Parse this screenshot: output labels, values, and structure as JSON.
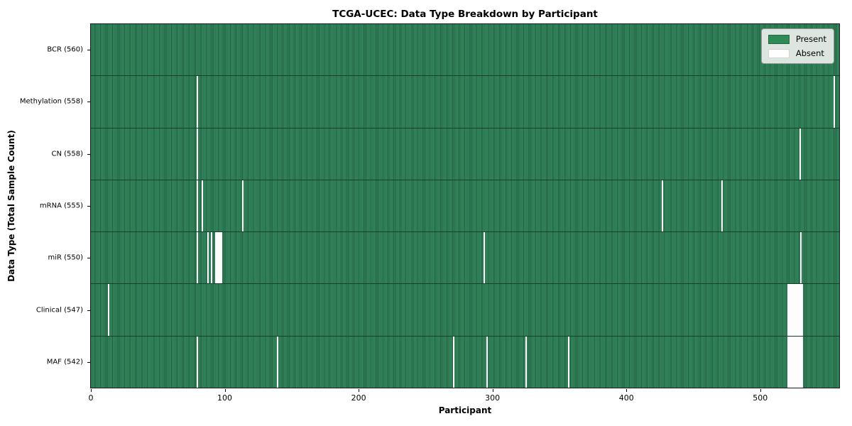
{
  "title": "TCGA-UCEC: Data Type Breakdown by Participant",
  "xlabel": "Participant",
  "ylabel": "Data Type (Total Sample Count)",
  "legend": {
    "present_label": "Present",
    "absent_label": "Absent"
  },
  "colors": {
    "present": "#2e8b57",
    "present_edge": "#215c3e",
    "absent": "#ffffff"
  },
  "x_ticks": [
    0,
    100,
    200,
    300,
    400,
    500
  ],
  "chart_data": {
    "type": "heatmap",
    "title": "TCGA-UCEC: Data Type Breakdown by Participant",
    "xlabel": "Participant",
    "ylabel": "Data Type (Total Sample Count)",
    "n_participants": 560,
    "xlim": [
      0,
      560
    ],
    "x_ticks": [
      0,
      100,
      200,
      300,
      400,
      500
    ],
    "legend": [
      "Present",
      "Absent"
    ],
    "legend_position": "upper right",
    "grid": false,
    "rows": [
      {
        "label": "BCR (560)",
        "present_count": 560,
        "absent_participants": []
      },
      {
        "label": "Methylation (558)",
        "present_count": 558,
        "absent_participants": [
          79,
          556
        ]
      },
      {
        "label": "CN (558)",
        "present_count": 558,
        "absent_participants": [
          79,
          530
        ]
      },
      {
        "label": "mRNA (555)",
        "present_count": 555,
        "absent_participants": [
          79,
          83,
          113,
          427,
          472
        ]
      },
      {
        "label": "miR (550)",
        "present_count": 550,
        "absent_participants": [
          79,
          87,
          90,
          93,
          94,
          95,
          96,
          97,
          294,
          531
        ]
      },
      {
        "label": "Clinical (547)",
        "present_count": 547,
        "absent_participants": [
          13,
          521,
          522,
          523,
          524,
          525,
          526,
          527,
          528,
          529,
          530,
          531,
          532
        ]
      },
      {
        "label": "MAF (542)",
        "present_count": 542,
        "absent_participants": [
          79,
          139,
          271,
          296,
          325,
          357,
          521,
          522,
          523,
          524,
          525,
          526,
          527,
          528,
          529,
          530,
          531,
          532
        ]
      }
    ]
  }
}
